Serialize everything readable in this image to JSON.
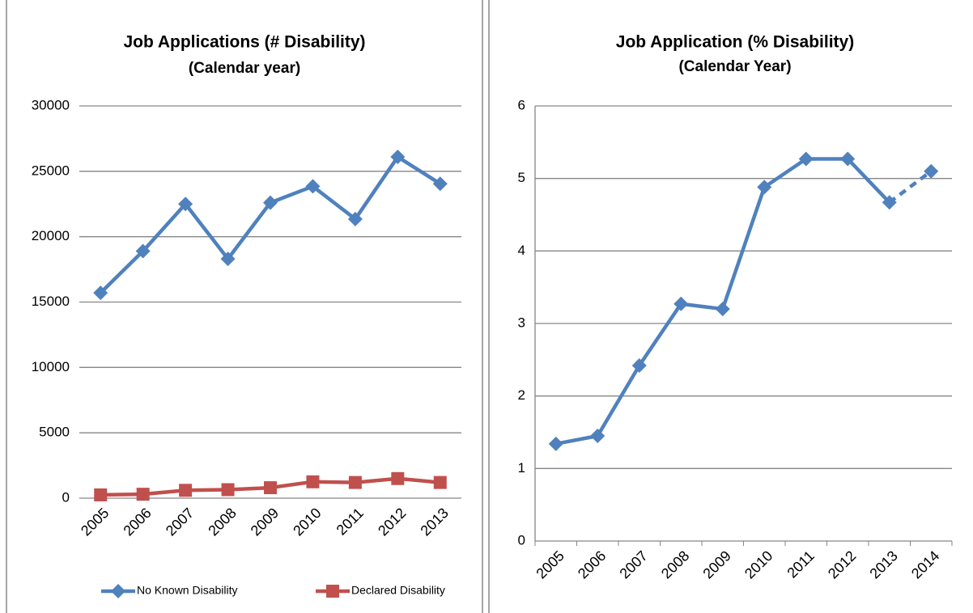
{
  "chart_data": [
    {
      "type": "line",
      "title": "Job Applications (# Disability)",
      "subtitle": "(Calendar year)",
      "categories": [
        "2005",
        "2006",
        "2007",
        "2008",
        "2009",
        "2010",
        "2011",
        "2012",
        "2013"
      ],
      "series": [
        {
          "name": "No Known Disability",
          "color": "#4f81bd",
          "marker": "diamond",
          "values": [
            15700,
            18900,
            22500,
            18300,
            22600,
            23850,
            21350,
            26100,
            24050
          ]
        },
        {
          "name": "Declared Disability",
          "color": "#c0504d",
          "marker": "square",
          "values": [
            250,
            300,
            600,
            650,
            800,
            1250,
            1200,
            1500,
            1200
          ]
        }
      ],
      "ylim": [
        0,
        30000
      ],
      "yticks": [
        0,
        5000,
        10000,
        15000,
        20000,
        25000,
        30000
      ],
      "grid": true,
      "legend": "bottom"
    },
    {
      "type": "line",
      "title": "Job Application (% Disability)",
      "subtitle": "(Calendar Year)",
      "categories": [
        "2005",
        "2006",
        "2007",
        "2008",
        "2009",
        "2010",
        "2011",
        "2012",
        "2013",
        "2014"
      ],
      "series": [
        {
          "color": "#4f81bd",
          "marker": "diamond",
          "dashed_from": 8,
          "values": [
            1.34,
            1.45,
            2.42,
            3.27,
            3.2,
            4.88,
            5.27,
            5.27,
            4.67,
            5.1
          ]
        }
      ],
      "ylim": [
        0,
        6
      ],
      "yticks": [
        0,
        1,
        2,
        3,
        4,
        5,
        6
      ],
      "grid": true
    }
  ]
}
